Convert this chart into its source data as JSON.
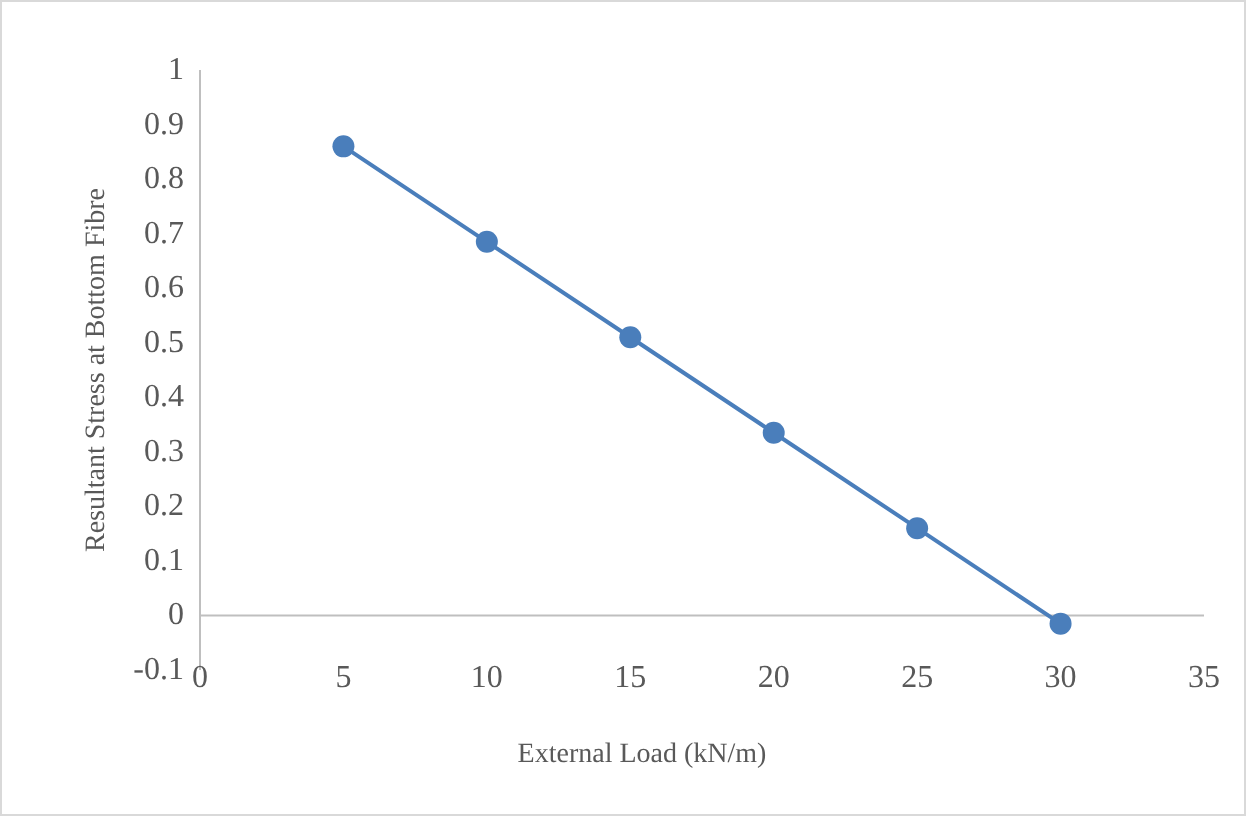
{
  "chart_data": {
    "type": "line",
    "xlabel": "External Load (kN/m)",
    "ylabel": "Resultant Stress at Bottom Fibre",
    "x": [
      5,
      10,
      15,
      20,
      25,
      30
    ],
    "series": [
      {
        "color": "#4a7ebb",
        "values": [
          0.86,
          0.685,
          0.51,
          0.335,
          0.16,
          -0.015
        ]
      }
    ],
    "xlim": [
      0,
      35
    ],
    "xticks": [
      0,
      5,
      10,
      15,
      20,
      25,
      30,
      35
    ],
    "ylim": [
      -0.1,
      1
    ],
    "yticks": [
      -0.1,
      0,
      0.1,
      0.2,
      0.3,
      0.4,
      0.5,
      0.6,
      0.7,
      0.8,
      0.9,
      1
    ],
    "grid": false,
    "marker": "circle",
    "line_style": "solid"
  }
}
